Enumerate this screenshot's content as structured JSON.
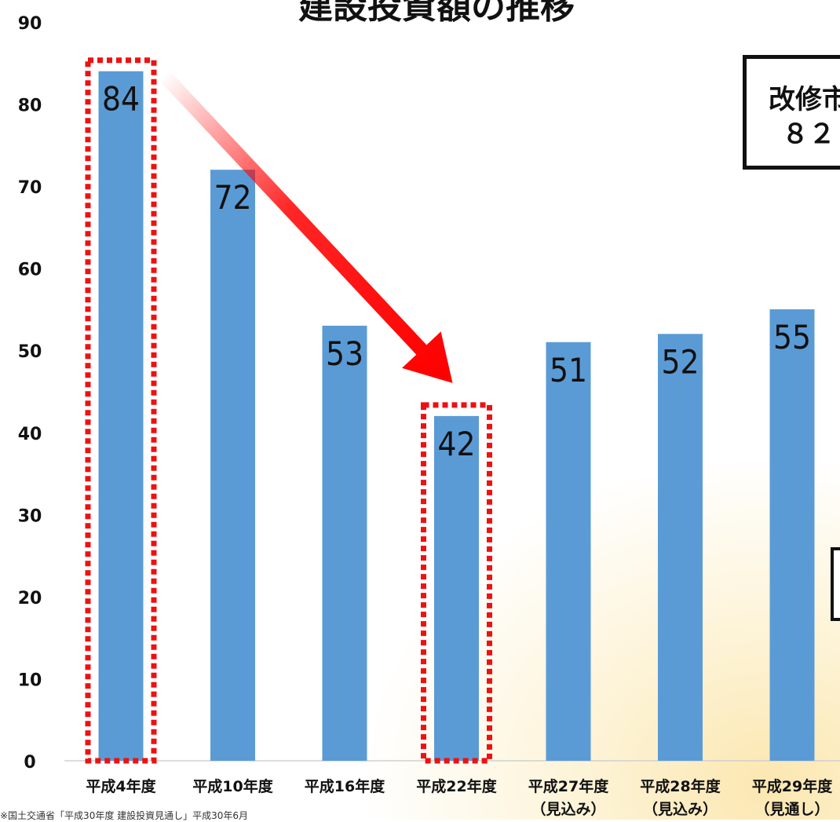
{
  "title": "建設投資額の推移",
  "source": "※国土交通省「平成30年度 建設投資見通し」平成30年6月",
  "callout": {
    "line1": "改修市",
    "line2": "８２"
  },
  "colors": {
    "bar": "#5b9bd5",
    "highlight": "#ee1111",
    "arrow": "#ff0000"
  },
  "chart_data": {
    "type": "bar",
    "categories": [
      [
        "平成4年度"
      ],
      [
        "平成10年度"
      ],
      [
        "平成16年度"
      ],
      [
        "平成22年度"
      ],
      [
        "平成27年度",
        "（見込み）"
      ],
      [
        "平成28年度",
        "（見込み）"
      ],
      [
        "平成29年度",
        "（見通し）"
      ]
    ],
    "values": [
      84,
      72,
      53,
      42,
      51,
      52,
      55
    ],
    "ylim": [
      0,
      90
    ],
    "yticks": [
      0,
      10,
      20,
      30,
      40,
      50,
      60,
      70,
      80,
      90
    ],
    "highlighted": [
      0,
      3
    ],
    "arrow": {
      "from": 0,
      "to": 3
    },
    "grid": false
  }
}
